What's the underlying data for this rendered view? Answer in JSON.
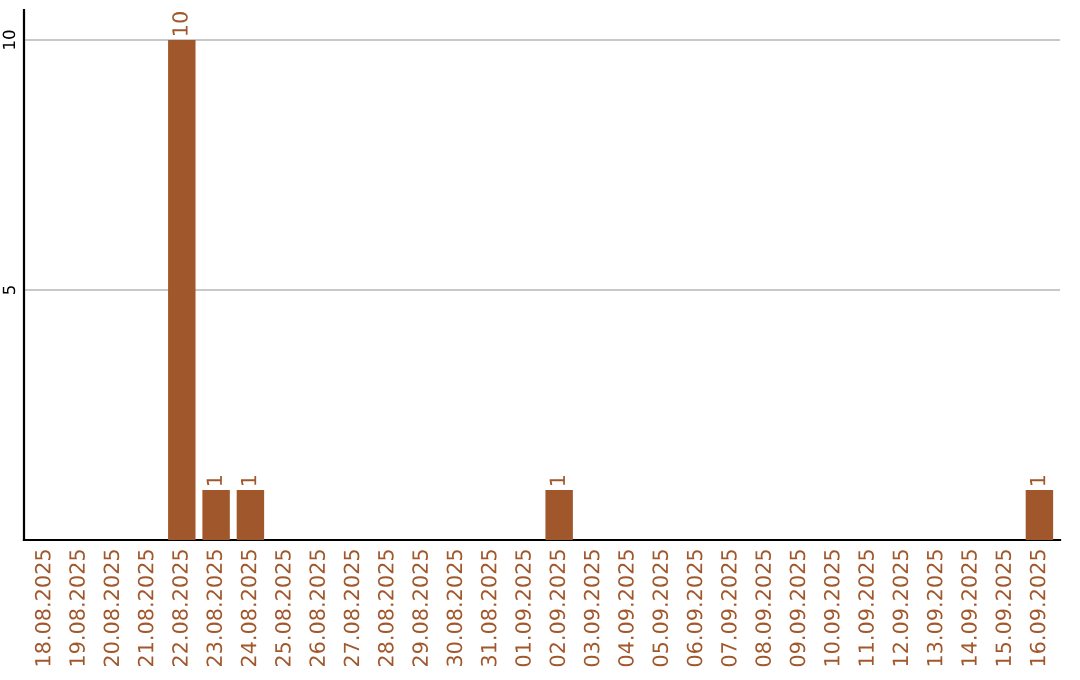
{
  "chart_data": {
    "type": "bar",
    "categories": [
      "18.08.2025",
      "19.08.2025",
      "20.08.2025",
      "21.08.2025",
      "22.08.2025",
      "23.08.2025",
      "24.08.2025",
      "25.08.2025",
      "26.08.2025",
      "27.08.2025",
      "28.08.2025",
      "29.08.2025",
      "30.08.2025",
      "31.08.2025",
      "01.09.2025",
      "02.09.2025",
      "03.09.2025",
      "04.09.2025",
      "05.09.2025",
      "06.09.2025",
      "07.09.2025",
      "08.09.2025",
      "09.09.2025",
      "10.09.2025",
      "11.09.2025",
      "12.09.2025",
      "13.09.2025",
      "14.09.2025",
      "15.09.2025",
      "16.09.2025"
    ],
    "values": [
      0,
      0,
      0,
      0,
      10,
      1,
      1,
      0,
      0,
      0,
      0,
      0,
      0,
      0,
      0,
      1,
      0,
      0,
      0,
      0,
      0,
      0,
      0,
      0,
      0,
      0,
      0,
      0,
      0,
      1
    ],
    "value_labels": [
      null,
      null,
      null,
      null,
      "10",
      "1",
      "1",
      null,
      null,
      null,
      null,
      null,
      null,
      null,
      null,
      "1",
      null,
      null,
      null,
      null,
      null,
      null,
      null,
      null,
      null,
      null,
      null,
      null,
      null,
      "1"
    ],
    "color": "#a0572b",
    "ylim": [
      0,
      10.6
    ],
    "yticks": [
      5,
      10
    ],
    "grid": "y",
    "legend": false
  }
}
